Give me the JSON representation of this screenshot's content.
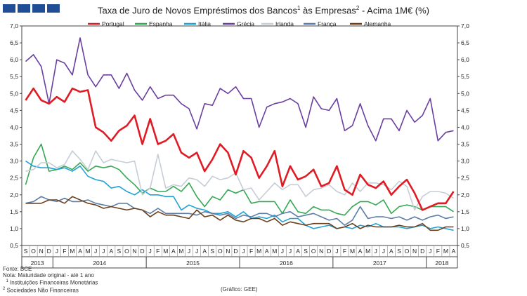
{
  "title": {
    "main": "Taxa de Juro de Novos Empréstimos dos Bancos",
    "sup1": "1",
    "mid": " às Empresas",
    "sup2": "2",
    "end": " - Acima 1M€ (%)"
  },
  "footnotes": {
    "source": "Fonte: BCE",
    "note": "Nota: Maturidade original - até 1 ano",
    "fn1_num": "1",
    "fn1": " Instituições Financeiras Monetárias",
    "fn2_num": "2",
    "fn2": " Sociedades Não Financeiras"
  },
  "graphic_credit": "(Gráfico: GEE)",
  "chart_data": {
    "type": "line",
    "title": "Taxa de Juro de Novos Empréstimos dos Bancos¹ às Empresas² - Acima 1M€ (%)",
    "ylim": [
      0.5,
      7.0
    ],
    "yticks": [
      "0,5",
      "1,0",
      "1,5",
      "2,0",
      "2,5",
      "3,0",
      "3,5",
      "4,0",
      "4,5",
      "5,0",
      "5,5",
      "6,0",
      "6,5",
      "7,0"
    ],
    "month_labels": [
      "S",
      "O",
      "N",
      "D",
      "J",
      "F",
      "M",
      "A",
      "M",
      "J",
      "J",
      "A",
      "S",
      "O",
      "N",
      "D",
      "J",
      "F",
      "M",
      "A",
      "M",
      "J",
      "J",
      "A",
      "S",
      "O",
      "N",
      "D",
      "J",
      "F",
      "M",
      "A",
      "M",
      "J",
      "J",
      "A",
      "S",
      "O",
      "N",
      "D",
      "J",
      "F",
      "M",
      "A",
      "M",
      "J",
      "J",
      "A",
      "S",
      "O",
      "N",
      "D",
      "J",
      "F",
      "M",
      "A"
    ],
    "year_groups": [
      {
        "label": "2013",
        "count": 4
      },
      {
        "label": "2014",
        "count": 12
      },
      {
        "label": "2015",
        "count": 12
      },
      {
        "label": "2016",
        "count": 12
      },
      {
        "label": "2017",
        "count": 12
      },
      {
        "label": "2018",
        "count": 4
      }
    ],
    "grid": false,
    "legend": "top",
    "series": [
      {
        "name": "Portugal",
        "color": "#e01b24",
        "width": 2.6,
        "values": [
          4.8,
          5.15,
          4.8,
          4.7,
          4.9,
          4.75,
          5.15,
          5.05,
          5.1,
          4.0,
          3.85,
          3.6,
          3.9,
          4.05,
          4.35,
          3.5,
          4.25,
          3.5,
          3.6,
          3.8,
          3.25,
          3.1,
          3.25,
          2.7,
          3.05,
          3.5,
          3.25,
          2.6,
          3.3,
          3.1,
          2.5,
          2.85,
          3.3,
          2.25,
          2.85,
          2.45,
          2.55,
          2.75,
          2.25,
          2.35,
          2.85,
          2.15,
          2.0,
          2.6,
          2.3,
          2.2,
          2.4,
          2.0,
          2.25,
          2.45,
          2.05,
          1.55,
          1.65,
          1.75,
          1.75,
          2.1
        ]
      },
      {
        "name": "Espanha",
        "color": "#35a853",
        "width": 1.6,
        "values": [
          2.3,
          3.1,
          3.5,
          2.7,
          2.75,
          2.85,
          2.75,
          2.95,
          2.7,
          2.85,
          2.8,
          2.85,
          2.75,
          2.5,
          2.3,
          2.05,
          2.2,
          2.1,
          2.1,
          2.25,
          2.1,
          2.35,
          1.95,
          1.65,
          1.95,
          1.85,
          2.15,
          2.05,
          2.15,
          1.75,
          1.8,
          1.8,
          1.8,
          1.45,
          1.85,
          1.5,
          1.45,
          1.65,
          1.55,
          1.55,
          1.45,
          1.4,
          1.65,
          1.8,
          1.8,
          1.7,
          1.85,
          1.45,
          1.65,
          1.7,
          1.65,
          1.55,
          1.65,
          1.65,
          1.65,
          1.5
        ]
      },
      {
        "name": "Itália",
        "color": "#1fa3d6",
        "width": 1.6,
        "values": [
          3.0,
          2.85,
          2.8,
          2.8,
          2.75,
          2.8,
          2.7,
          2.85,
          2.55,
          2.45,
          2.4,
          2.2,
          2.25,
          2.1,
          2.0,
          2.15,
          2.0,
          2.0,
          1.95,
          1.95,
          1.55,
          1.7,
          1.6,
          1.55,
          1.45,
          1.45,
          1.5,
          1.35,
          1.5,
          1.3,
          1.35,
          1.3,
          1.4,
          1.2,
          1.3,
          1.3,
          1.1,
          1.0,
          1.05,
          1.1,
          1.0,
          1.05,
          1.0,
          1.1,
          1.05,
          1.15,
          1.05,
          1.05,
          1.05,
          1.0,
          1.05,
          1.1,
          1.0,
          1.05,
          1.0,
          0.95
        ]
      },
      {
        "name": "Grécia",
        "color": "#6a3fa0",
        "width": 1.6,
        "values": [
          5.95,
          6.15,
          5.8,
          4.7,
          6.0,
          5.9,
          5.55,
          6.65,
          5.55,
          5.2,
          5.55,
          5.55,
          5.15,
          5.6,
          5.1,
          4.8,
          5.2,
          4.85,
          4.95,
          4.95,
          4.7,
          4.55,
          3.95,
          4.7,
          4.65,
          5.15,
          5.0,
          5.2,
          4.85,
          4.85,
          4.0,
          4.6,
          4.7,
          4.75,
          4.85,
          4.7,
          4.0,
          4.9,
          4.55,
          4.5,
          4.85,
          3.9,
          4.05,
          4.7,
          4.05,
          3.6,
          4.25,
          4.25,
          3.9,
          4.5,
          4.15,
          4.35,
          4.85,
          3.6,
          3.85,
          3.9
        ]
      },
      {
        "name": "Irlanda",
        "color": "#c6cdd6",
        "width": 1.6,
        "values": [
          2.7,
          2.75,
          2.95,
          2.95,
          2.8,
          2.9,
          3.3,
          3.05,
          2.75,
          3.3,
          2.95,
          3.05,
          3.0,
          2.95,
          3.0,
          2.0,
          2.2,
          3.2,
          2.2,
          2.3,
          2.25,
          2.5,
          2.45,
          2.25,
          2.55,
          2.45,
          2.5,
          2.65,
          2.15,
          2.2,
          1.85,
          2.1,
          2.35,
          2.15,
          2.3,
          2.3,
          1.95,
          2.15,
          2.2,
          2.3,
          2.1,
          2.0,
          2.35,
          2.1,
          2.35,
          2.35,
          2.3,
          2.15,
          2.4,
          2.25,
          1.55,
          1.95,
          2.1,
          2.1,
          2.05,
          1.9
        ]
      },
      {
        "name": "França",
        "color": "#5b7da8",
        "width": 1.6,
        "values": [
          1.75,
          1.8,
          1.95,
          1.85,
          1.8,
          1.9,
          1.8,
          1.8,
          1.85,
          1.75,
          1.7,
          1.65,
          1.75,
          1.75,
          1.6,
          1.55,
          1.45,
          1.6,
          1.45,
          1.45,
          1.45,
          1.45,
          1.4,
          1.5,
          1.45,
          1.4,
          1.45,
          1.3,
          1.4,
          1.35,
          1.45,
          1.45,
          1.35,
          1.45,
          1.5,
          1.35,
          1.4,
          1.45,
          1.35,
          1.25,
          1.3,
          1.1,
          1.25,
          1.65,
          1.3,
          1.35,
          1.35,
          1.3,
          1.35,
          1.25,
          1.35,
          1.25,
          1.35,
          1.4,
          1.3,
          1.35
        ]
      },
      {
        "name": "Alemanha",
        "color": "#6b3f1c",
        "width": 1.6,
        "values": [
          1.75,
          1.75,
          1.75,
          1.85,
          1.85,
          1.75,
          1.95,
          1.85,
          1.75,
          1.7,
          1.6,
          1.65,
          1.6,
          1.55,
          1.6,
          1.55,
          1.35,
          1.5,
          1.4,
          1.4,
          1.35,
          1.3,
          1.55,
          1.35,
          1.4,
          1.25,
          1.4,
          1.25,
          1.2,
          1.3,
          1.3,
          1.2,
          1.3,
          1.1,
          1.2,
          1.15,
          1.1,
          1.15,
          1.15,
          1.15,
          1.0,
          1.05,
          1.15,
          1.0,
          1.1,
          1.05,
          1.05,
          1.05,
          1.1,
          1.05,
          1.05,
          1.15,
          0.95,
          0.95,
          1.05,
          1.05
        ]
      }
    ]
  }
}
